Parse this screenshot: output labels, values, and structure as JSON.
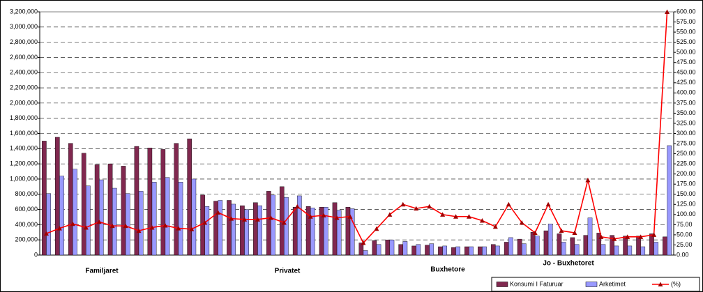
{
  "chart_data": {
    "type": "bar_line",
    "categories": [
      null,
      null,
      null,
      null,
      null,
      null,
      null,
      null,
      null,
      null,
      null,
      null,
      null,
      null,
      null,
      null,
      null,
      null,
      null,
      null,
      null,
      null,
      null,
      null,
      null,
      null,
      null,
      null,
      null,
      null,
      null,
      null,
      null,
      null,
      null,
      null,
      null,
      null,
      null,
      null,
      null,
      null,
      null,
      null,
      null,
      null,
      null,
      null
    ],
    "group_labels": [
      "Familjaret",
      "Privatet",
      "Buxhetore",
      "Jo - Buxhetoret"
    ],
    "series": [
      {
        "name": "Konsumi I Faturuar",
        "type": "bar",
        "color": "#80284f",
        "values": [
          1500000,
          1550000,
          1470000,
          1340000,
          1190000,
          1200000,
          1170000,
          1430000,
          1410000,
          1390000,
          1470000,
          1530000,
          790000,
          710000,
          720000,
          650000,
          690000,
          840000,
          900000,
          630000,
          640000,
          630000,
          690000,
          630000,
          160000,
          190000,
          200000,
          140000,
          120000,
          130000,
          110000,
          100000,
          110000,
          110000,
          140000,
          170000,
          210000,
          300000,
          320000,
          280000,
          230000,
          260000,
          290000,
          260000,
          250000,
          250000,
          280000,
          240000
        ]
      },
      {
        "name": "Arketimet",
        "type": "bar",
        "color": "#9999ff",
        "values": [
          810000,
          1040000,
          1130000,
          910000,
          990000,
          880000,
          810000,
          840000,
          960000,
          1020000,
          960000,
          1000000,
          640000,
          720000,
          670000,
          600000,
          650000,
          790000,
          760000,
          780000,
          620000,
          630000,
          590000,
          610000,
          60000,
          140000,
          200000,
          180000,
          140000,
          150000,
          120000,
          110000,
          110000,
          110000,
          120000,
          230000,
          150000,
          250000,
          410000,
          170000,
          140000,
          490000,
          140000,
          120000,
          120000,
          110000,
          170000,
          1440000
        ]
      },
      {
        "name": "(%)",
        "type": "line",
        "axis": "y2",
        "color": "#ff0000",
        "marker_color": "#a00000",
        "values": [
          53,
          66,
          77,
          68,
          82,
          72,
          72,
          60,
          68,
          73,
          66,
          64,
          80,
          105,
          90,
          88,
          88,
          92,
          80,
          120,
          95,
          98,
          92,
          95,
          30,
          65,
          100,
          125,
          115,
          120,
          100,
          95,
          95,
          85,
          70,
          125,
          80,
          55,
          125,
          60,
          55,
          185,
          45,
          40,
          45,
          45,
          50,
          600
        ]
      }
    ],
    "ylim": [
      0,
      3200000
    ],
    "yticks": [
      0,
      {
        "value": 200000,
        "label": "200,000"
      },
      {
        "value": 400000,
        "label": "400,000"
      },
      {
        "value": 600000,
        "label": "600,000"
      },
      {
        "value": 800000,
        "label": "800,000"
      },
      {
        "value": 1000000,
        "label": "1,000,000"
      },
      {
        "value": 1200000,
        "label": "1,200,000"
      },
      {
        "value": 1400000,
        "label": "1,400,000"
      },
      {
        "value": 1600000,
        "label": "1,600,000"
      },
      {
        "value": 1800000,
        "label": "1,800,000"
      },
      {
        "value": 2000000,
        "label": "2,000,000"
      },
      {
        "value": 2200000,
        "label": "2,200,000"
      },
      {
        "value": 2400000,
        "label": "2,400,000"
      },
      {
        "value": 2600000,
        "label": "2,600,000"
      },
      {
        "value": 2800000,
        "label": "2,800,000"
      },
      {
        "value": 3000000,
        "label": "3,000,000"
      },
      {
        "value": 3200000,
        "label": "3,200,000"
      }
    ],
    "y2lim": [
      0,
      600
    ],
    "y2ticks": [
      {
        "value": 0,
        "label": "0.00"
      },
      {
        "value": 25,
        "label": "25.00"
      },
      {
        "value": 50,
        "label": "50.00"
      },
      {
        "value": 75,
        "label": "75.00"
      },
      {
        "value": 100,
        "label": "100.00"
      },
      {
        "value": 125,
        "label": "125.00"
      },
      {
        "value": 150,
        "label": "150.00"
      },
      {
        "value": 175,
        "label": "175.00"
      },
      {
        "value": 200,
        "label": "200.00"
      },
      {
        "value": 225,
        "label": "225.00"
      },
      {
        "value": 250,
        "label": "250.00"
      },
      {
        "value": 275,
        "label": "275.00"
      },
      {
        "value": 300,
        "label": "300.00"
      },
      {
        "value": 325,
        "label": "325.00"
      },
      {
        "value": 350,
        "label": "350.00"
      },
      {
        "value": 375,
        "label": "375.00"
      },
      {
        "value": 400,
        "label": "400.00"
      },
      {
        "value": 425,
        "label": "425.00"
      },
      {
        "value": 450,
        "label": "450.00"
      },
      {
        "value": 475,
        "label": "475.00"
      },
      {
        "value": 500,
        "label": "500.00"
      },
      {
        "value": 525,
        "label": "525.00"
      },
      {
        "value": 550,
        "label": "550.00"
      },
      {
        "value": 575,
        "label": "575.00"
      },
      {
        "value": 600,
        "label": "600.00"
      }
    ],
    "grid": true,
    "legend": "bottom-right"
  }
}
